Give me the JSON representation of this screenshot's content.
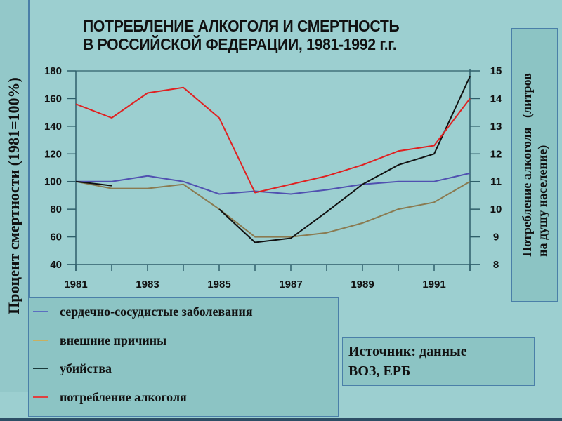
{
  "slide": {
    "title_line1": "ПОТРЕБЛЕНИЕ АЛКОГОЛЯ И СМЕРТНОСТЬ",
    "title_line2": "В РОССИЙСКОЙ ФЕДЕРАЦИИ, 1981-1992 г.г.",
    "left_axis_label": "Процент смертности (1981=100%)",
    "right_axis_label_line1": "Потребление алкоголя   (литров",
    "right_axis_label_line2": "на душу население)",
    "source_line1": "Источник: данные",
    "source_line2": "ВОЗ, ЕРБ",
    "background_color": "#9ccfd0"
  },
  "legend": {
    "items": [
      {
        "label": "сердечно-сосудистые заболевания",
        "color": "#5b6fc0"
      },
      {
        "label": "внешние причины",
        "color": "#c8b060"
      },
      {
        "label": "убийства",
        "color": "#1a3a3a"
      },
      {
        "label": "потребление алкоголя",
        "color": "#e04040"
      }
    ]
  },
  "chart_data": {
    "type": "line",
    "title": "ПОТРЕБЛЕНИЕ АЛКОГОЛЯ И СМЕРТНОСТЬ В РОССИЙСКОЙ ФЕДЕРАЦИИ, 1981-1992 г.г.",
    "xlabel": "",
    "ylabel": "Процент смертности (1981=100%)",
    "y2label": "Потребление алкоголя (литров на душу население)",
    "x": [
      1981,
      1982,
      1983,
      1984,
      1985,
      1986,
      1987,
      1988,
      1989,
      1990,
      1991,
      1992
    ],
    "x_tick_labels": [
      "1981",
      "1983",
      "1985",
      "1987",
      "1989",
      "1991"
    ],
    "ylim": [
      40,
      180
    ],
    "y_ticks": [
      40,
      60,
      80,
      100,
      120,
      140,
      160,
      180
    ],
    "y2lim": [
      8,
      15
    ],
    "y2_ticks": [
      8,
      9,
      10,
      11,
      12,
      13,
      14,
      15
    ],
    "grid": false,
    "legend_position": "below-left",
    "series": [
      {
        "name": "сердечно-сосудистые заболевания",
        "axis": "left",
        "color": "#5050b0",
        "values": [
          100,
          100,
          104,
          100,
          91,
          93,
          91,
          94,
          98,
          100,
          100,
          106
        ]
      },
      {
        "name": "внешние причины",
        "axis": "left",
        "color": "#8a7a50",
        "values": [
          100,
          95,
          95,
          98,
          80,
          60,
          60,
          63,
          70,
          80,
          85,
          100
        ]
      },
      {
        "name": "убийства",
        "axis": "left",
        "color": "#111111",
        "values": [
          100,
          97,
          null,
          null,
          80,
          56,
          59,
          78,
          98,
          112,
          120,
          176
        ]
      },
      {
        "name": "потребление алкоголя",
        "axis": "right",
        "color": "#e02020",
        "values": [
          13.8,
          13.3,
          14.2,
          14.4,
          13.3,
          10.6,
          10.9,
          11.2,
          11.6,
          12.1,
          12.3,
          14.0
        ]
      }
    ]
  }
}
